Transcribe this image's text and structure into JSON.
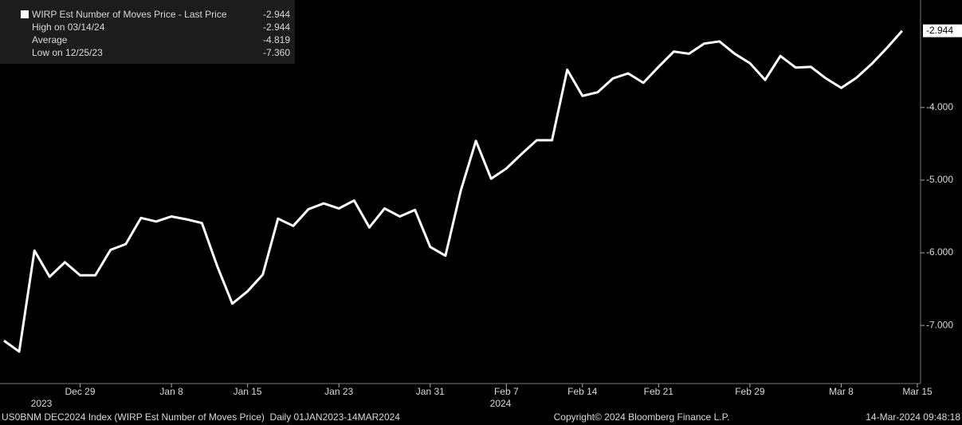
{
  "chart_data": {
    "type": "line",
    "legend": {
      "title": "WIRP Est Number of Moves Price - Last Price",
      "title_value": "-2.944",
      "stats": [
        {
          "label": "High on 03/14/24",
          "value": "-2.944"
        },
        {
          "label": "Average",
          "value": "-4.819"
        },
        {
          "label": "Low on 12/25/23",
          "value": "-7.360"
        }
      ]
    },
    "categories": [
      null,
      null,
      null,
      null,
      null,
      "Dec 29",
      null,
      null,
      null,
      null,
      null,
      "Jan 8",
      null,
      null,
      null,
      null,
      "Jan 15",
      null,
      null,
      null,
      null,
      null,
      "Jan 23",
      null,
      null,
      null,
      null,
      null,
      "Jan 31",
      null,
      null,
      null,
      null,
      "Feb 7",
      null,
      null,
      null,
      null,
      "Feb 14",
      null,
      null,
      null,
      null,
      "Feb 21",
      null,
      null,
      null,
      null,
      null,
      "Feb 29",
      null,
      null,
      null,
      null,
      null,
      "Mar 8",
      null,
      null,
      null,
      null,
      "Mar 15"
    ],
    "series": [
      {
        "name": "WIRP Est Number of Moves Price",
        "color": "#ffffff",
        "values": [
          -7.21,
          -7.36,
          -5.97,
          -6.33,
          -6.13,
          -6.31,
          -6.31,
          -5.96,
          -5.88,
          -5.52,
          -5.57,
          -5.5,
          -5.54,
          -5.59,
          -6.18,
          -6.7,
          -6.53,
          -6.3,
          -5.53,
          -5.63,
          -5.4,
          -5.32,
          -5.39,
          -5.28,
          -5.65,
          -5.39,
          -5.5,
          -5.41,
          -5.92,
          -6.04,
          -5.15,
          -4.46,
          -4.98,
          -4.84,
          -4.64,
          -4.45,
          -4.45,
          -3.48,
          -3.84,
          -3.79,
          -3.6,
          -3.53,
          -3.66,
          -3.44,
          -3.23,
          -3.26,
          -3.12,
          -3.09,
          -3.26,
          -3.39,
          -3.62,
          -3.29,
          -3.45,
          -3.44,
          -3.6,
          -3.73,
          -3.59,
          -3.4,
          -3.18,
          -2.944,
          null
        ]
      }
    ],
    "last_price": {
      "value": -2.944,
      "label": "-2.944"
    },
    "year_labels": [
      "2023",
      "2024"
    ],
    "ylim": [
      -7.8,
      -2.52
    ],
    "yticks": [
      {
        "value": -4,
        "label": "-4.000"
      },
      {
        "value": -5,
        "label": "-5.000"
      },
      {
        "value": -6,
        "label": "-6.000"
      },
      {
        "value": -7,
        "label": "-7.000"
      }
    ],
    "grid": false,
    "footer": {
      "left": "US0BNM DEC2024 Index (WIRP Est Number of Moves Price)  Daily 01JAN2023-14MAR2024",
      "center": "Copyright© 2024 Bloomberg Finance L.P.",
      "right": "14-Mar-2024 09:48:18"
    }
  }
}
